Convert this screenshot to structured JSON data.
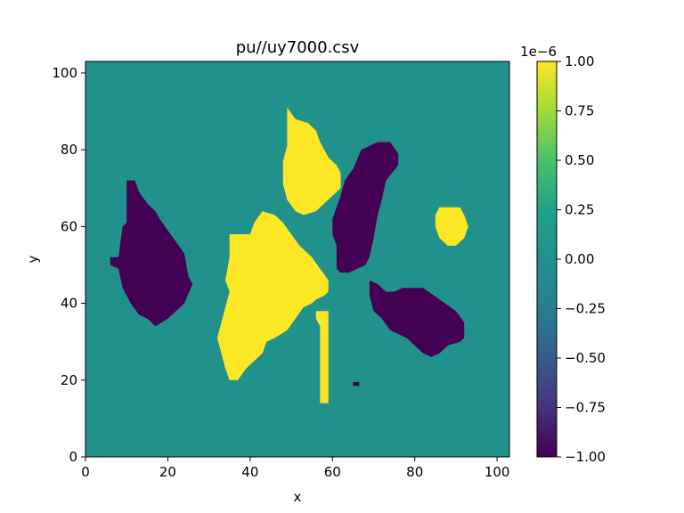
{
  "chart_data": {
    "type": "heatmap",
    "title": "pu//uy7000.csv",
    "xlabel": "x",
    "ylabel": "y",
    "xlim": [
      0,
      103
    ],
    "ylim": [
      0,
      103
    ],
    "x_ticks": [
      "0",
      "20",
      "40",
      "60",
      "80",
      "100"
    ],
    "y_ticks": [
      "0",
      "20",
      "40",
      "60",
      "80",
      "100"
    ],
    "colorbar": {
      "colormap": "viridis",
      "range": [
        -1.0,
        1.0
      ],
      "offset_label": "1e−6",
      "ticks": [
        "−1.00",
        "−0.75",
        "−0.50",
        "−0.25",
        "0.00",
        "0.25",
        "0.50",
        "0.75",
        "1.00"
      ]
    },
    "colors": {
      "background": "#21918c",
      "positive": "#fde725",
      "negative": "#440154"
    },
    "regions": [
      {
        "value": -1,
        "polygon": [
          [
            6,
            52
          ],
          [
            8,
            52
          ],
          [
            9,
            60
          ],
          [
            10,
            61
          ],
          [
            10,
            72
          ],
          [
            12,
            72
          ],
          [
            13,
            69
          ],
          [
            15,
            66
          ],
          [
            17,
            64
          ],
          [
            18,
            62
          ],
          [
            20,
            59
          ],
          [
            22,
            56
          ],
          [
            24,
            53
          ],
          [
            25,
            47
          ],
          [
            26,
            45
          ],
          [
            24,
            40
          ],
          [
            22,
            38
          ],
          [
            20,
            36
          ],
          [
            17,
            34
          ],
          [
            15,
            36
          ],
          [
            13,
            37
          ],
          [
            11,
            40
          ],
          [
            9,
            44
          ],
          [
            8,
            49
          ],
          [
            6,
            50
          ]
        ]
      },
      {
        "value": -1,
        "polygon": [
          [
            67,
            80
          ],
          [
            71,
            82
          ],
          [
            74,
            82
          ],
          [
            76,
            79
          ],
          [
            76,
            76
          ],
          [
            73,
            72
          ],
          [
            72,
            67
          ],
          [
            71,
            63
          ],
          [
            70,
            57
          ],
          [
            69,
            52
          ],
          [
            68,
            50
          ],
          [
            66,
            49
          ],
          [
            64,
            48
          ],
          [
            62,
            48
          ],
          [
            61,
            49
          ],
          [
            61,
            55
          ],
          [
            60,
            58
          ],
          [
            60,
            62
          ],
          [
            62,
            68
          ],
          [
            63,
            72
          ],
          [
            65,
            75
          ]
        ]
      },
      {
        "value": -1,
        "polygon": [
          [
            69,
            46
          ],
          [
            71,
            45
          ],
          [
            73,
            43
          ],
          [
            75,
            43
          ],
          [
            77,
            44
          ],
          [
            82,
            44
          ],
          [
            86,
            41
          ],
          [
            90,
            38
          ],
          [
            92,
            35
          ],
          [
            92,
            31
          ],
          [
            91,
            30
          ],
          [
            88,
            29
          ],
          [
            86,
            27
          ],
          [
            84,
            26
          ],
          [
            82,
            27
          ],
          [
            80,
            29
          ],
          [
            78,
            31
          ],
          [
            76,
            32
          ],
          [
            74,
            33
          ],
          [
            72,
            36
          ],
          [
            70,
            38
          ],
          [
            69,
            42
          ]
        ]
      },
      {
        "value": -1,
        "polygon": [
          [
            65,
            18.5
          ],
          [
            66.5,
            18.5
          ],
          [
            66.5,
            19.5
          ],
          [
            65,
            19.5
          ]
        ]
      },
      {
        "value": 1,
        "polygon": [
          [
            35,
            58
          ],
          [
            40,
            58
          ],
          [
            41,
            61
          ],
          [
            43,
            64
          ],
          [
            46,
            63
          ],
          [
            48,
            61
          ],
          [
            50,
            58
          ],
          [
            52,
            55
          ],
          [
            55,
            52
          ],
          [
            57,
            49
          ],
          [
            59,
            46
          ],
          [
            59,
            43
          ],
          [
            58,
            42
          ],
          [
            56,
            41
          ],
          [
            55,
            40
          ],
          [
            53,
            39
          ],
          [
            51,
            36
          ],
          [
            49,
            33
          ],
          [
            46,
            31
          ],
          [
            44,
            30
          ],
          [
            43,
            27
          ],
          [
            41,
            25
          ],
          [
            39,
            23
          ],
          [
            37,
            20
          ],
          [
            35,
            20
          ],
          [
            34,
            23
          ],
          [
            33,
            27
          ],
          [
            32,
            31
          ],
          [
            33,
            35
          ],
          [
            34,
            39
          ],
          [
            35,
            43
          ],
          [
            34,
            46
          ],
          [
            35,
            52
          ]
        ]
      },
      {
        "value": 1,
        "polygon": [
          [
            49,
            91
          ],
          [
            51,
            88
          ],
          [
            54,
            87
          ],
          [
            56,
            85
          ],
          [
            57,
            82
          ],
          [
            59,
            78
          ],
          [
            61,
            76
          ],
          [
            62,
            74
          ],
          [
            62,
            70
          ],
          [
            60,
            68
          ],
          [
            58,
            66
          ],
          [
            56,
            64
          ],
          [
            53,
            63
          ],
          [
            51,
            64
          ],
          [
            49,
            67
          ],
          [
            48,
            71
          ],
          [
            48,
            77
          ],
          [
            49,
            81
          ],
          [
            49,
            87
          ]
        ]
      },
      {
        "value": 1,
        "polygon": [
          [
            85,
            63
          ],
          [
            86,
            65
          ],
          [
            91,
            65
          ],
          [
            92,
            63
          ],
          [
            93,
            60
          ],
          [
            92,
            57
          ],
          [
            90,
            55
          ],
          [
            88,
            55
          ],
          [
            86,
            57
          ],
          [
            85,
            60
          ]
        ]
      },
      {
        "value": 1,
        "polygon": [
          [
            56,
            38
          ],
          [
            59,
            38
          ],
          [
            59,
            14
          ],
          [
            57,
            14
          ],
          [
            57,
            34
          ],
          [
            56,
            36
          ]
        ]
      }
    ]
  }
}
